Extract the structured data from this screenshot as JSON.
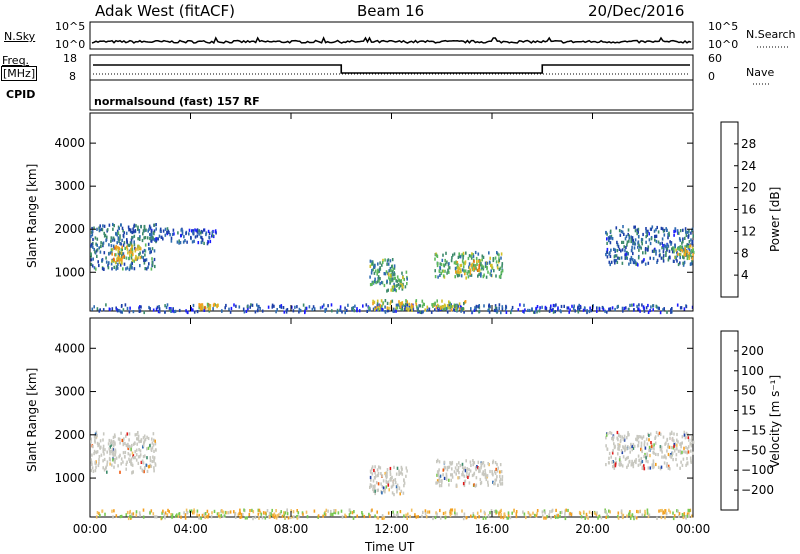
{
  "header": {
    "radar": "Adak West (fitACF)",
    "beam": "Beam 16",
    "date": "20/Dec/2016"
  },
  "summary_panels": {
    "nsky_label": "N.Sky",
    "nsky_top": "10^5",
    "nsky_bottom": "10^0",
    "nsearch_label": "N.Search",
    "nsearch_top": "10^5",
    "nsearch_bottom": "10^0",
    "freq_label": "Freq.",
    "freq_unit": "[MHz]",
    "freq_top": "18",
    "freq_bottom": "8",
    "nave_label": "Nave",
    "nave_top": "60",
    "nave_bottom": "0",
    "cpid_label": "CPID",
    "cpid_value": "normalsound (fast) 157 RF"
  },
  "colors": {
    "scale_power": [
      "#1a1aff",
      "#1c3fa8",
      "#2f6bb0",
      "#3c8a6a",
      "#5cb85c",
      "#d2c12a",
      "#f0a020",
      "#e86a10",
      "#e11a1a"
    ],
    "scale_velocity": [
      "#e11a1a",
      "#ee5a10",
      "#f3a020",
      "#f2c060",
      "#c8c8c0",
      "#78c850",
      "#3c8a6a",
      "#2f6bb0",
      "#1c3fa8"
    ]
  },
  "chart_data": [
    {
      "type": "heatmap",
      "title": "",
      "xlabel": "",
      "ylabel": "Slant Range [km]",
      "ylim": [
        100,
        4700
      ],
      "xlim": [
        0,
        24
      ],
      "y_ticks": [
        1000,
        2000,
        3000,
        4000
      ],
      "x_ticks": [
        "00:00",
        "04:00",
        "08:00",
        "12:00",
        "16:00",
        "20:00",
        "00:00"
      ],
      "colorbar_label": "Power [dB]",
      "colorbar_ticks": [
        "4",
        "8",
        "12",
        "16",
        "20",
        "24",
        "28"
      ],
      "clim": [
        0,
        30
      ],
      "regions": [
        {
          "t0": 0.0,
          "t1": 2.6,
          "r0": 1100,
          "r1": 2150,
          "level": 9
        },
        {
          "t0": 0.8,
          "t1": 2.0,
          "r0": 1250,
          "r1": 1650,
          "level": 20
        },
        {
          "t0": 2.4,
          "t1": 5.0,
          "r0": 1700,
          "r1": 2050,
          "level": 6
        },
        {
          "t0": 11.1,
          "t1": 12.1,
          "r0": 700,
          "r1": 1350,
          "level": 12
        },
        {
          "t0": 11.7,
          "t1": 12.6,
          "r0": 600,
          "r1": 1050,
          "level": 14
        },
        {
          "t0": 13.7,
          "t1": 16.4,
          "r0": 900,
          "r1": 1500,
          "level": 13
        },
        {
          "t0": 14.5,
          "t1": 15.5,
          "r0": 1000,
          "r1": 1300,
          "level": 19
        },
        {
          "t0": 20.5,
          "t1": 24.0,
          "r0": 1200,
          "r1": 2100,
          "level": 8
        },
        {
          "t0": 23.2,
          "t1": 24.0,
          "r0": 1350,
          "r1": 1650,
          "level": 18
        },
        {
          "t0": 0.0,
          "t1": 24.0,
          "r0": 100,
          "r1": 280,
          "level": 6
        },
        {
          "t0": 11.0,
          "t1": 15.0,
          "r0": 150,
          "r1": 380,
          "level": 17
        },
        {
          "t0": 4.3,
          "t1": 5.1,
          "r0": 180,
          "r1": 300,
          "level": 20
        }
      ]
    },
    {
      "type": "heatmap",
      "title": "",
      "xlabel": "Time UT",
      "ylabel": "Slant Range [km]",
      "ylim": [
        100,
        4700
      ],
      "xlim": [
        0,
        24
      ],
      "y_ticks": [
        1000,
        2000,
        3000,
        4000
      ],
      "x_ticks": [
        "00:00",
        "04:00",
        "08:00",
        "12:00",
        "16:00",
        "20:00",
        "00:00"
      ],
      "colorbar_label": "Velocity [m s⁻¹]",
      "colorbar_ticks": [
        "200",
        "100",
        "50",
        "15",
        "−15",
        "−50",
        "−100",
        "−200"
      ],
      "clim": [
        -250,
        250
      ],
      "regions": [
        {
          "t0": 0.0,
          "t1": 2.6,
          "r0": 1150,
          "r1": 2100,
          "class": "ground"
        },
        {
          "t0": 11.1,
          "t1": 12.6,
          "r0": 650,
          "r1": 1300,
          "class": "ground"
        },
        {
          "t0": 13.7,
          "t1": 16.4,
          "r0": 850,
          "r1": 1450,
          "class": "ground"
        },
        {
          "t0": 20.5,
          "t1": 24.0,
          "r0": 1250,
          "r1": 2100,
          "class": "ground"
        },
        {
          "t0": 0.0,
          "t1": 24.0,
          "r0": 100,
          "r1": 300,
          "class": "low"
        }
      ]
    }
  ]
}
